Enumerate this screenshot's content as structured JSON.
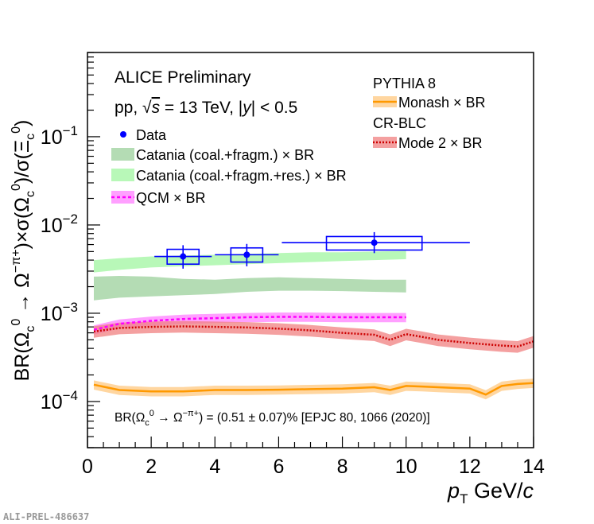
{
  "chart_data": {
    "type": "scatter",
    "yscale": "log",
    "xlim": [
      0,
      14
    ],
    "ylim": [
      3e-05,
      0.9
    ],
    "grid": false,
    "xlabel": {
      "pre": "",
      "var": "p",
      "sub": "T",
      "post": " GeV/",
      "var2": "c"
    },
    "ylabel": "BR(Ω_c^0 → Ω^−π^+)×σ(Ω_c^0)/σ(Ξ_c^0)",
    "x_ticks": [
      "0",
      "2",
      "4",
      "6",
      "8",
      "10",
      "12",
      "14"
    ],
    "y_ticks": [
      {
        "value": 0.0001,
        "base": "10",
        "exp": "−4"
      },
      {
        "value": 0.001,
        "base": "10",
        "exp": "−3"
      },
      {
        "value": 0.01,
        "base": "10",
        "exp": "−2"
      },
      {
        "value": 0.1,
        "base": "10",
        "exp": "−1"
      }
    ],
    "annotations": {
      "title": "ALICE Preliminary",
      "system": {
        "pre": "pp, ",
        "sqrt": "√",
        "s": "s",
        "mid": " = 13 TeV, |",
        "y": "y",
        "post": "| < 0.5"
      },
      "pythia": "PYTHIA 8",
      "crblc": "CR-BLC",
      "br_note": "BR(Ω_c^0 → Ω^−π^+) = (0.51 ± 0.07)% [EPJC 80, 1066 (2020)]",
      "watermark": "ALI-PREL-486637"
    },
    "legend_left": [
      {
        "label": "Data",
        "color": "#0000ff",
        "style": "marker"
      },
      {
        "label": "Catania (coal.+fragm.) × BR",
        "color": "#b4dcb4",
        "style": "band"
      },
      {
        "label": "Catania (coal.+fragm.+res.) × BR",
        "color": "#b8f8b8",
        "style": "band"
      },
      {
        "label": "QCM × BR",
        "color": "#ff00ff",
        "band": "#ff80ff",
        "style": "dashed-band"
      }
    ],
    "legend_right": [
      {
        "label": "Monash × BR",
        "color": "#ff9900",
        "band": "#ffc880",
        "style": "line-band"
      },
      {
        "label": "Mode 2 × BR",
        "color": "#cc0000",
        "band": "#f08080",
        "style": "dotted-band"
      }
    ],
    "series": [
      {
        "name": "Data",
        "color": "#0000ff",
        "points": [
          {
            "x": 3.0,
            "y": 0.0044,
            "xerr": [
              0.9,
              0.9
            ],
            "yerr": [
              0.0012,
              0.0015
            ],
            "sys_x": [
              2.5,
              3.5
            ],
            "sys_y": [
              0.0036,
              0.0053
            ]
          },
          {
            "x": 5.0,
            "y": 0.0046,
            "xerr": [
              1.0,
              1.0
            ],
            "yerr": [
              0.0012,
              0.0015
            ],
            "sys_x": [
              4.5,
              5.5
            ],
            "sys_y": [
              0.0038,
              0.0055
            ]
          },
          {
            "x": 9.0,
            "y": 0.0063,
            "xerr": [
              2.9,
              3.0
            ],
            "yerr": [
              0.0015,
              0.002
            ],
            "sys_x": [
              7.5,
              10.5
            ],
            "sys_y": [
              0.0052,
              0.0074
            ]
          }
        ]
      },
      {
        "name": "Catania (coal.+fragm.) × BR",
        "color": "#b4dcb4",
        "x": [
          0.2,
          1,
          2,
          3,
          4,
          5,
          6,
          7,
          8,
          9,
          10
        ],
        "lo": [
          0.0014,
          0.0015,
          0.00155,
          0.0016,
          0.00165,
          0.00175,
          0.0018,
          0.0018,
          0.00178,
          0.00175,
          0.00172
        ],
        "hi": [
          0.0026,
          0.00265,
          0.0026,
          0.00245,
          0.0024,
          0.0025,
          0.00255,
          0.0025,
          0.00245,
          0.0024,
          0.0024
        ]
      },
      {
        "name": "Catania (coal.+fragm.+res.) × BR",
        "color": "#b8f8b8",
        "x": [
          0.2,
          1,
          2,
          3,
          4,
          5,
          6,
          7,
          8,
          9,
          10
        ],
        "lo": [
          0.0029,
          0.0031,
          0.0033,
          0.0034,
          0.0035,
          0.0036,
          0.0037,
          0.0038,
          0.0039,
          0.004,
          0.0041
        ],
        "hi": [
          0.004,
          0.0042,
          0.0044,
          0.0045,
          0.0046,
          0.0047,
          0.0048,
          0.0049,
          0.0049,
          0.005,
          0.0051
        ]
      },
      {
        "name": "QCM × BR",
        "color": "#ff00ff",
        "band": "#ff80ff",
        "x": [
          0.2,
          1,
          2,
          3,
          4,
          5,
          6,
          7,
          8,
          9,
          10
        ],
        "y": [
          0.00065,
          0.00076,
          0.00082,
          0.00086,
          0.00088,
          0.0009,
          0.00091,
          0.00091,
          0.0009,
          0.0009,
          0.0009
        ],
        "rel_err": 0.12
      },
      {
        "name": "Mode 2 × BR",
        "color": "#cc0000",
        "band": "#f08080",
        "x": [
          0.2,
          1,
          2,
          3,
          4,
          5,
          6,
          7,
          8,
          9,
          9.5,
          10,
          10.5,
          11,
          12,
          13,
          13.5,
          14
        ],
        "y": [
          0.00062,
          0.00068,
          0.0007,
          0.00071,
          0.0007,
          0.00069,
          0.00067,
          0.00064,
          0.0006,
          0.00057,
          0.0005,
          0.00058,
          0.00054,
          0.0005,
          0.00046,
          0.00043,
          0.00042,
          0.00048
        ],
        "rel_err": 0.15
      },
      {
        "name": "Monash × BR",
        "color": "#ff9900",
        "band": "#ffc880",
        "x": [
          0.2,
          1,
          2,
          3,
          4,
          5,
          6,
          7,
          8,
          9,
          9.5,
          10,
          10.5,
          11,
          12,
          12.5,
          13,
          13.5,
          14
        ],
        "y": [
          0.000155,
          0.000135,
          0.00013,
          0.00013,
          0.000135,
          0.000135,
          0.000136,
          0.000138,
          0.00014,
          0.000145,
          0.000135,
          0.00015,
          0.000148,
          0.000145,
          0.00014,
          0.00012,
          0.00015,
          0.000158,
          0.000162
        ],
        "rel_err": 0.12
      }
    ]
  }
}
